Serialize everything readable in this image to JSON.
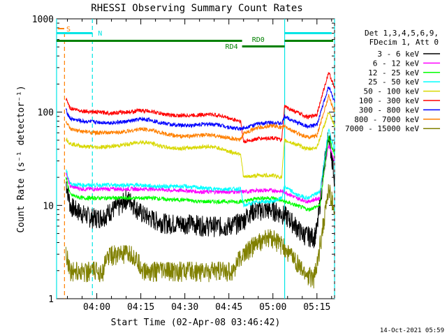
{
  "chart_data": {
    "type": "line",
    "title": "RHESSI Observing Summary Count Rates",
    "xlabel": "Start Time (02-Apr-08 03:46:42)",
    "ylabel": "Count Rate (s⁻¹ detector⁻¹)",
    "y_scale": "log",
    "ylim": [
      1,
      1000
    ],
    "y_ticks": [
      {
        "value": 1,
        "label": "1"
      },
      {
        "value": 10,
        "label": "10"
      },
      {
        "value": 100,
        "label": "100"
      },
      {
        "value": 1000,
        "label": "1000"
      }
    ],
    "x_range_minutes": [
      -13.7,
      28
    ],
    "x_ticks": [
      {
        "t": 0,
        "label": "04:00"
      },
      {
        "t": 15,
        "label": "04:15"
      },
      {
        "t": 30,
        "label": "04:30"
      },
      {
        "t": 45,
        "label": "04:45"
      },
      {
        "t": 60,
        "label": "05:00"
      },
      {
        "t": 75,
        "label": "05:15"
      }
    ],
    "legend_header": [
      "Det 1,3,4,5,6,9,",
      "FDecim 1, Att 0"
    ],
    "legend_position": "right",
    "footer_date": "14-Oct-2021 05:59",
    "annotations": {
      "saa_label": "S",
      "night_label": "N",
      "decimation_labels": [
        "RD0",
        "RD4"
      ],
      "saa_time": 66,
      "night_intervals": [
        [
          -13.7,
          -1.5
        ],
        [
          64,
          80
        ]
      ],
      "decim_rd0": [
        [
          -13.7,
          49.5
        ],
        [
          64,
          81
        ]
      ],
      "decim_rd4": [
        [
          49.5,
          64
        ]
      ],
      "cyan_lines": [
        -13.7,
        64
      ],
      "dashed_cyan_lines": [
        -1.5,
        81
      ],
      "dashed_orange_lines": [
        -11
      ]
    },
    "series": [
      {
        "name": "3 - 6 keV",
        "color": "#000000",
        "values": [
          [
            -10.5,
            18
          ],
          [
            -9,
            10
          ],
          [
            -7,
            9
          ],
          [
            -4,
            8
          ],
          [
            -2,
            7.5
          ],
          [
            1,
            7.5
          ],
          [
            3,
            8
          ],
          [
            5,
            9
          ],
          [
            8,
            10
          ],
          [
            10,
            12
          ],
          [
            12,
            11
          ],
          [
            14,
            9
          ],
          [
            16,
            8
          ],
          [
            20,
            7
          ],
          [
            24,
            6.5
          ],
          [
            28,
            6.5
          ],
          [
            32,
            6.5
          ],
          [
            36,
            6.2
          ],
          [
            40,
            6.1
          ],
          [
            44,
            6
          ],
          [
            48,
            6.5
          ],
          [
            50,
            7
          ],
          [
            52,
            8.5
          ],
          [
            55,
            9
          ],
          [
            58,
            9
          ],
          [
            60,
            9
          ],
          [
            62,
            8.5
          ],
          [
            64,
            8
          ],
          [
            66,
            7
          ],
          [
            68,
            6
          ],
          [
            70,
            5
          ],
          [
            72,
            4.8
          ],
          [
            74,
            4.6
          ],
          [
            75,
            5.5
          ],
          [
            77,
            20
          ],
          [
            79,
            60
          ],
          [
            81,
            20
          ]
        ]
      },
      {
        "name": "6 - 12 keV",
        "color": "#ff00ff",
        "values": [
          [
            -10.5,
            22
          ],
          [
            -9,
            16
          ],
          [
            -5,
            15
          ],
          [
            0,
            15
          ],
          [
            5,
            15
          ],
          [
            10,
            15
          ],
          [
            15,
            15
          ],
          [
            20,
            15
          ],
          [
            25,
            14.5
          ],
          [
            30,
            14.5
          ],
          [
            35,
            14
          ],
          [
            40,
            14
          ],
          [
            45,
            14
          ],
          [
            50,
            14
          ],
          [
            55,
            14.5
          ],
          [
            60,
            14.5
          ],
          [
            64,
            14
          ],
          [
            68,
            12
          ],
          [
            72,
            11
          ],
          [
            76,
            12
          ],
          [
            79,
            45
          ],
          [
            81,
            30
          ]
        ]
      },
      {
        "name": "12 - 25 keV",
        "color": "#00ff00",
        "values": [
          [
            -10.5,
            20
          ],
          [
            -9,
            13
          ],
          [
            -5,
            12
          ],
          [
            0,
            12
          ],
          [
            5,
            12
          ],
          [
            10,
            12
          ],
          [
            15,
            12
          ],
          [
            20,
            12
          ],
          [
            25,
            11.5
          ],
          [
            30,
            11.5
          ],
          [
            35,
            11
          ],
          [
            40,
            11
          ],
          [
            45,
            11
          ],
          [
            50,
            11
          ],
          [
            55,
            12
          ],
          [
            60,
            12
          ],
          [
            64,
            11
          ],
          [
            68,
            10
          ],
          [
            72,
            9
          ],
          [
            76,
            10
          ],
          [
            79,
            55
          ],
          [
            81,
            35
          ]
        ]
      },
      {
        "name": "25 - 50 keV",
        "color": "#00ffff",
        "values": [
          [
            -10.5,
            24
          ],
          [
            -9,
            17
          ],
          [
            -5,
            16.5
          ],
          [
            0,
            16.5
          ],
          [
            5,
            16.5
          ],
          [
            10,
            16.5
          ],
          [
            15,
            16.5
          ],
          [
            20,
            16
          ],
          [
            25,
            16
          ],
          [
            30,
            16
          ],
          [
            35,
            15.5
          ],
          [
            40,
            15
          ],
          [
            45,
            15
          ],
          [
            49,
            15
          ],
          [
            50,
            10
          ],
          [
            55,
            11
          ],
          [
            60,
            11
          ],
          [
            63,
            12
          ],
          [
            64,
            16
          ],
          [
            68,
            13
          ],
          [
            72,
            12
          ],
          [
            76,
            14
          ],
          [
            79,
            65
          ],
          [
            81,
            40
          ]
        ]
      },
      {
        "name": "50 - 100 keV",
        "color": "#d8d800",
        "values": [
          [
            -10.5,
            52
          ],
          [
            -9,
            46
          ],
          [
            -5,
            43
          ],
          [
            0,
            42
          ],
          [
            5,
            43
          ],
          [
            10,
            45
          ],
          [
            15,
            48
          ],
          [
            18,
            47
          ],
          [
            22,
            43
          ],
          [
            26,
            41
          ],
          [
            30,
            41
          ],
          [
            34,
            42
          ],
          [
            38,
            43
          ],
          [
            42,
            41
          ],
          [
            46,
            37
          ],
          [
            49,
            36
          ],
          [
            50,
            20
          ],
          [
            55,
            21
          ],
          [
            60,
            21
          ],
          [
            63,
            20
          ],
          [
            64,
            50
          ],
          [
            68,
            45
          ],
          [
            72,
            40
          ],
          [
            75,
            42
          ],
          [
            79,
            100
          ],
          [
            81,
            70
          ]
        ]
      },
      {
        "name": "100 - 300 keV",
        "color": "#ff0000",
        "values": [
          [
            -10.5,
            140
          ],
          [
            -9,
            110
          ],
          [
            -5,
            103
          ],
          [
            0,
            100
          ],
          [
            5,
            98
          ],
          [
            10,
            100
          ],
          [
            15,
            104
          ],
          [
            18,
            103
          ],
          [
            22,
            96
          ],
          [
            26,
            92
          ],
          [
            30,
            92
          ],
          [
            34,
            93
          ],
          [
            38,
            95
          ],
          [
            42,
            92
          ],
          [
            46,
            84
          ],
          [
            49,
            80
          ],
          [
            50,
            48
          ],
          [
            55,
            52
          ],
          [
            60,
            53
          ],
          [
            63,
            50
          ],
          [
            64,
            115
          ],
          [
            68,
            100
          ],
          [
            72,
            88
          ],
          [
            75,
            95
          ],
          [
            79,
            270
          ],
          [
            81,
            180
          ]
        ]
      },
      {
        "name": "300 - 800 keV",
        "color": "#0000ff",
        "values": [
          [
            -10.5,
            105
          ],
          [
            -9,
            85
          ],
          [
            -5,
            80
          ],
          [
            0,
            78
          ],
          [
            5,
            77
          ],
          [
            10,
            79
          ],
          [
            15,
            84
          ],
          [
            18,
            83
          ],
          [
            22,
            77
          ],
          [
            26,
            73
          ],
          [
            30,
            72
          ],
          [
            34,
            73
          ],
          [
            38,
            75
          ],
          [
            42,
            73
          ],
          [
            46,
            68
          ],
          [
            49,
            66
          ],
          [
            50,
            68
          ],
          [
            55,
            75
          ],
          [
            60,
            78
          ],
          [
            63,
            75
          ],
          [
            64,
            90
          ],
          [
            68,
            78
          ],
          [
            72,
            70
          ],
          [
            75,
            73
          ],
          [
            79,
            190
          ],
          [
            81,
            130
          ]
        ]
      },
      {
        "name": "800 - 7000 keV",
        "color": "#ff8000",
        "values": [
          [
            -10.5,
            80
          ],
          [
            -9,
            65
          ],
          [
            -5,
            62
          ],
          [
            0,
            60
          ],
          [
            5,
            60
          ],
          [
            10,
            62
          ],
          [
            15,
            66
          ],
          [
            18,
            65
          ],
          [
            22,
            60
          ],
          [
            26,
            56
          ],
          [
            30,
            55
          ],
          [
            34,
            56
          ],
          [
            38,
            57
          ],
          [
            42,
            55
          ],
          [
            46,
            52
          ],
          [
            49,
            50
          ],
          [
            50,
            60
          ],
          [
            55,
            68
          ],
          [
            60,
            72
          ],
          [
            63,
            68
          ],
          [
            64,
            70
          ],
          [
            68,
            60
          ],
          [
            72,
            54
          ],
          [
            75,
            56
          ],
          [
            79,
            150
          ],
          [
            81,
            100
          ]
        ]
      },
      {
        "name": "7000 - 15000 keV",
        "color": "#808000",
        "values": [
          [
            -10.5,
            3.2
          ],
          [
            -9,
            2
          ],
          [
            -5,
            2
          ],
          [
            0,
            2
          ],
          [
            2,
            2
          ],
          [
            4,
            3
          ],
          [
            8,
            3
          ],
          [
            12,
            3
          ],
          [
            14,
            2.5
          ],
          [
            16,
            2
          ],
          [
            20,
            2
          ],
          [
            24,
            2
          ],
          [
            28,
            2
          ],
          [
            32,
            2
          ],
          [
            36,
            2
          ],
          [
            40,
            2
          ],
          [
            44,
            2
          ],
          [
            46,
            2
          ],
          [
            48,
            2.5
          ],
          [
            50,
            3
          ],
          [
            52,
            3.5
          ],
          [
            55,
            4
          ],
          [
            58,
            4.5
          ],
          [
            60,
            4.5
          ],
          [
            62,
            4
          ],
          [
            64,
            3.5
          ],
          [
            66,
            3
          ],
          [
            68,
            2.5
          ],
          [
            70,
            2
          ],
          [
            72,
            1.8
          ],
          [
            74,
            1.7
          ],
          [
            75,
            2.2
          ],
          [
            77,
            6
          ],
          [
            79,
            15
          ],
          [
            81,
            9
          ]
        ]
      }
    ]
  }
}
